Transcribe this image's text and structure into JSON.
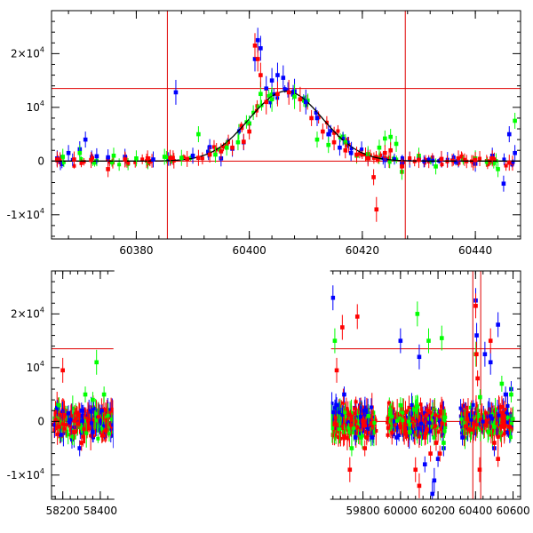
{
  "chart_data": [
    {
      "type": "scatter",
      "panel": "zoom",
      "title": "",
      "xlabel": "",
      "ylabel": "",
      "xlim": [
        60365,
        60448
      ],
      "ylim": [
        -14500,
        28000
      ],
      "x_ticks": [
        {
          "v": 60380,
          "label": "60380"
        },
        {
          "v": 60400,
          "label": "60400"
        },
        {
          "v": 60420,
          "label": "60420"
        },
        {
          "v": 60440,
          "label": "60440"
        }
      ],
      "y_ticks": [
        {
          "v": -10000,
          "base": "-1×10",
          "exp": "4"
        },
        {
          "v": 0,
          "base": "0",
          "exp": ""
        },
        {
          "v": 10000,
          "base": "10",
          "exp": "4"
        },
        {
          "v": 20000,
          "base": "2×10",
          "exp": "4"
        }
      ],
      "hlines": [
        0,
        13500
      ],
      "vlines": [
        60385.5,
        60427.6
      ],
      "model": {
        "t0": 60406.5,
        "peak": 13000,
        "sigma": 6.5
      },
      "grid": false,
      "legend": "none",
      "series": [
        {
          "color": "#0000ff",
          "points": [
            [
              60366,
              500
            ],
            [
              60368,
              1500
            ],
            [
              60370,
              2200
            ],
            [
              60371,
              4000
            ],
            [
              60373,
              900
            ],
            [
              60375,
              700
            ],
            [
              60378,
              800
            ],
            [
              60383,
              300
            ],
            [
              60387,
              12800
            ],
            [
              60390,
              1000
            ],
            [
              60393,
              2600
            ],
            [
              60395,
              500
            ],
            [
              60397,
              2300
            ],
            [
              60399,
              3500
            ],
            [
              60400,
              7000
            ],
            [
              60401,
              19000
            ],
            [
              60401.5,
              22500
            ],
            [
              60402,
              21000
            ],
            [
              60403,
              13500
            ],
            [
              60404,
              15000
            ],
            [
              60405,
              16000
            ],
            [
              60406,
              15500
            ],
            [
              60408,
              13000
            ],
            [
              60410,
              11000
            ],
            [
              60412,
              8000
            ],
            [
              60414,
              5000
            ],
            [
              60416,
              2500
            ],
            [
              60418,
              1500
            ],
            [
              60421,
              800
            ],
            [
              60424,
              200
            ],
            [
              60427,
              -500
            ],
            [
              60430,
              500
            ],
            [
              60434,
              300
            ],
            [
              60437,
              300
            ],
            [
              60440,
              -500
            ],
            [
              60443,
              1000
            ],
            [
              60445,
              -4200
            ],
            [
              60446,
              5000
            ],
            [
              60447,
              1500
            ]
          ]
        },
        {
          "color": "#00ff00",
          "points": [
            [
              60367,
              800
            ],
            [
              60370,
              1500
            ],
            [
              60376,
              1000
            ],
            [
              60380,
              500
            ],
            [
              60385,
              800
            ],
            [
              60388,
              600
            ],
            [
              60391,
              5000
            ],
            [
              60394,
              1200
            ],
            [
              60396,
              2500
            ],
            [
              60398,
              3500
            ],
            [
              60400,
              7000
            ],
            [
              60402,
              12500
            ],
            [
              60404,
              11500
            ],
            [
              60408,
              12000
            ],
            [
              60412,
              4000
            ],
            [
              60414,
              3000
            ],
            [
              60417,
              3500
            ],
            [
              60419,
              1000
            ],
            [
              60421,
              1300
            ],
            [
              60423,
              2500
            ],
            [
              60424,
              4200
            ],
            [
              60425,
              4500
            ],
            [
              60426,
              3200
            ],
            [
              60427,
              -2000
            ],
            [
              60430,
              1000
            ],
            [
              60433,
              -1000
            ],
            [
              60440,
              500
            ],
            [
              60444,
              -1500
            ],
            [
              60447,
              7500
            ]
          ]
        },
        {
          "color": "#ff0000",
          "points": [
            [
              60366,
              300
            ],
            [
              60369,
              300
            ],
            [
              60372,
              200
            ],
            [
              60375,
              -1500
            ],
            [
              60378,
              300
            ],
            [
              60382,
              500
            ],
            [
              60386,
              600
            ],
            [
              60389,
              400
            ],
            [
              60391,
              600
            ],
            [
              60393,
              1200
            ],
            [
              60395,
              1800
            ],
            [
              60397,
              2500
            ],
            [
              60399,
              3600
            ],
            [
              60400,
              5500
            ],
            [
              60401,
              21500
            ],
            [
              60401.5,
              19000
            ],
            [
              60402,
              16000
            ],
            [
              60403,
              11000
            ],
            [
              60405,
              12500
            ],
            [
              60407,
              12800
            ],
            [
              60409,
              11500
            ],
            [
              60411,
              8000
            ],
            [
              60413,
              5500
            ],
            [
              60415,
              3500
            ],
            [
              60417,
              2000
            ],
            [
              60419,
              1200
            ],
            [
              60421,
              500
            ],
            [
              60422,
              -3000
            ],
            [
              60422.5,
              -9000
            ],
            [
              60424,
              1500
            ],
            [
              60425,
              2000
            ],
            [
              60427,
              -1000
            ],
            [
              60430,
              200
            ],
            [
              60434,
              400
            ],
            [
              60437,
              500
            ],
            [
              60440,
              200
            ],
            [
              60443,
              500
            ],
            [
              60446,
              -300
            ]
          ]
        }
      ]
    },
    {
      "type": "scatter",
      "panel": "full",
      "title": "",
      "xlabel": "",
      "ylabel": "",
      "xlim": [
        58140,
        60640
      ],
      "ylim": [
        -14500,
        28000
      ],
      "x_ticks": [
        {
          "v": 58200,
          "label": "58200"
        },
        {
          "v": 58400,
          "label": "58400"
        },
        {
          "v": 59800,
          "label": "59800"
        },
        {
          "v": 60000,
          "label": "60000"
        },
        {
          "v": 60200,
          "label": "60200"
        },
        {
          "v": 60400,
          "label": "60400"
        },
        {
          "v": 60600,
          "label": "60600"
        }
      ],
      "y_ticks": [
        {
          "v": -10000,
          "base": "-1×10",
          "exp": "4"
        },
        {
          "v": 0,
          "base": "0",
          "exp": ""
        },
        {
          "v": 10000,
          "base": "10",
          "exp": "4"
        },
        {
          "v": 20000,
          "base": "2×10",
          "exp": "4"
        }
      ],
      "hlines": [
        0,
        13500
      ],
      "vlines": [
        60385.5,
        60427.6
      ],
      "gaps": [
        [
          58470,
          59630
        ]
      ],
      "seasons": [
        [
          58150,
          58470
        ],
        [
          59630,
          59870
        ],
        [
          59930,
          60240
        ],
        [
          60320,
          60600
        ]
      ],
      "grid": false,
      "legend": "none",
      "series": [
        {
          "color": "#0000ff",
          "points": [
            [
              58170,
              2500
            ],
            [
              58190,
              -2500
            ],
            [
              58230,
              1500
            ],
            [
              58290,
              -5000
            ],
            [
              58300,
              2000
            ],
            [
              58360,
              -2000
            ],
            [
              59640,
              23000
            ],
            [
              59660,
              3000
            ],
            [
              59700,
              5000
            ],
            [
              59760,
              -3000
            ],
            [
              59810,
              2000
            ],
            [
              59850,
              -3000
            ],
            [
              59980,
              -3000
            ],
            [
              60000,
              15000
            ],
            [
              60060,
              -2000
            ],
            [
              60100,
              12000
            ],
            [
              60130,
              -8000
            ],
            [
              60170,
              -13500
            ],
            [
              60180,
              -11000
            ],
            [
              60200,
              -7000
            ],
            [
              60230,
              -5000
            ],
            [
              60330,
              -3000
            ],
            [
              60401,
              22500
            ],
            [
              60406,
              16000
            ],
            [
              60450,
              12500
            ],
            [
              60480,
              11000
            ],
            [
              60500,
              -5000
            ],
            [
              60520,
              18000
            ],
            [
              60560,
              5000
            ],
            [
              60590,
              6000
            ]
          ]
        },
        {
          "color": "#00ff00",
          "points": [
            [
              58180,
              3000
            ],
            [
              58260,
              -3000
            ],
            [
              58320,
              5000
            ],
            [
              58360,
              4000
            ],
            [
              58380,
              11000
            ],
            [
              58420,
              5000
            ],
            [
              59650,
              15000
            ],
            [
              59700,
              -2000
            ],
            [
              59740,
              -5000
            ],
            [
              59790,
              -3000
            ],
            [
              59830,
              1000
            ],
            [
              60000,
              3000
            ],
            [
              60050,
              -2000
            ],
            [
              60090,
              20000
            ],
            [
              60150,
              15000
            ],
            [
              60180,
              -3000
            ],
            [
              60220,
              15500
            ],
            [
              60230,
              -4000
            ],
            [
              60402,
              12500
            ],
            [
              60424,
              4500
            ],
            [
              60470,
              -2000
            ],
            [
              60500,
              -1000
            ],
            [
              60540,
              7000
            ],
            [
              60590,
              5000
            ]
          ]
        },
        {
          "color": "#ff0000",
          "points": [
            [
              58180,
              -1000
            ],
            [
              58200,
              9500
            ],
            [
              58260,
              -2000
            ],
            [
              58300,
              -4000
            ],
            [
              59660,
              9500
            ],
            [
              59690,
              17500
            ],
            [
              59700,
              -3000
            ],
            [
              59730,
              -9000
            ],
            [
              59770,
              19500
            ],
            [
              59810,
              -5000
            ],
            [
              59820,
              -3000
            ],
            [
              60000,
              -1000
            ],
            [
              60080,
              -9000
            ],
            [
              60100,
              -12000
            ],
            [
              60130,
              -3000
            ],
            [
              60160,
              -6000
            ],
            [
              60190,
              -4000
            ],
            [
              60210,
              -6000
            ],
            [
              60370,
              -1500
            ],
            [
              60401,
              21500
            ],
            [
              60405,
              12500
            ],
            [
              60411,
              8000
            ],
            [
              60422,
              -9000
            ],
            [
              60480,
              15000
            ],
            [
              60500,
              -4000
            ],
            [
              60520,
              -7000
            ],
            [
              60550,
              -1000
            ],
            [
              60580,
              -1000
            ]
          ]
        }
      ]
    }
  ]
}
